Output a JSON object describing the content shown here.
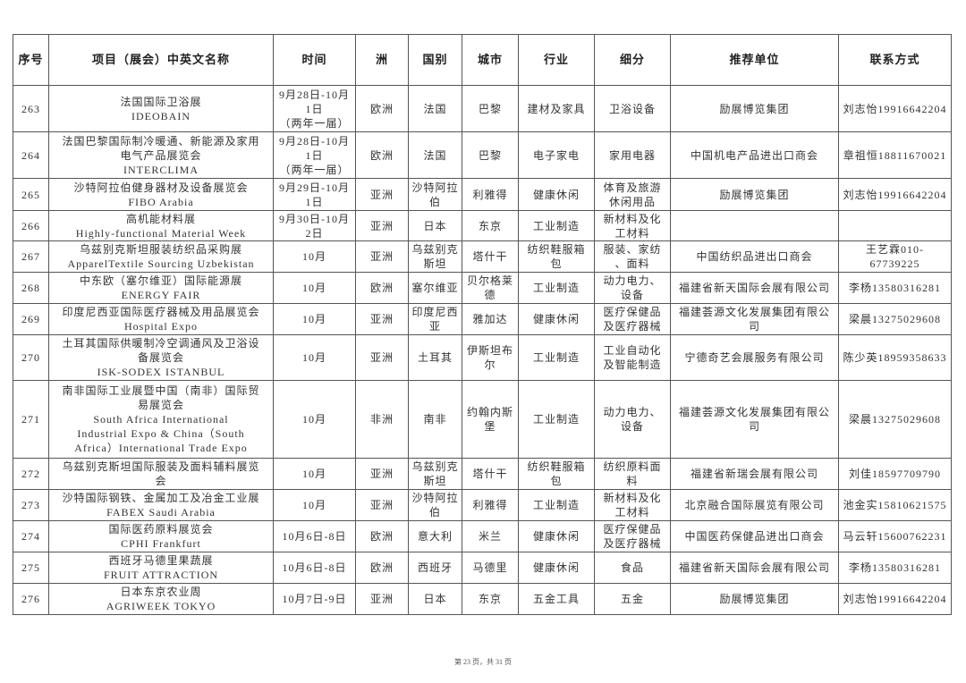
{
  "table": {
    "headers": [
      "序号",
      "项目（展会）中英文名称",
      "时间",
      "洲",
      "国别",
      "城市",
      "行业",
      "细分",
      "推荐单位",
      "联系方式"
    ],
    "rows": [
      [
        "263",
        "法国国际卫浴展\nIDEOBAIN",
        "9月28日-10月\n1日\n（两年一届）",
        "欧洲",
        "法国",
        "巴黎",
        "建材及家具",
        "卫浴设备",
        "励展博览集团",
        "刘志怡19916642204"
      ],
      [
        "264",
        "法国巴黎国际制冷暖通、新能源及家用\n电气产品展览会\nINTERCLIMA",
        "9月28日-10月\n1日\n（两年一届）",
        "欧洲",
        "法国",
        "巴黎",
        "电子家电",
        "家用电器",
        "中国机电产品进出口商会",
        "章祖恒18811670021"
      ],
      [
        "265",
        "沙特阿拉伯健身器材及设备展览会\nFIBO Arabia",
        "9月29日-10月\n1日",
        "亚洲",
        "沙特阿拉\n伯",
        "利雅得",
        "健康休闲",
        "体育及旅游\n休闲用品",
        "励展博览集团",
        "刘志怡19916642204"
      ],
      [
        "266",
        "高机能材料展\nHighly-functional Material Week",
        "9月30日-10月\n2日",
        "亚洲",
        "日本",
        "东京",
        "工业制造",
        "新材料及化\n工材料",
        "",
        ""
      ],
      [
        "267",
        "乌兹别克斯坦服装纺织品采购展\nApparelTextile Sourcing Uzbekistan",
        "10月",
        "亚洲",
        "乌兹别克\n斯坦",
        "塔什干",
        "纺织鞋服箱\n包",
        "服装、家纺\n、面料",
        "中国纺织品进出口商会",
        "王艺霖010-\n67739225"
      ],
      [
        "268",
        "中东欧（塞尔维亚）国际能源展\nENERGY FAIR",
        "10月",
        "欧洲",
        "塞尔维亚",
        "贝尔格莱\n德",
        "工业制造",
        "动力电力、\n设备",
        "福建省新天国际会展有限公司",
        "李杨13580316281"
      ],
      [
        "269",
        "印度尼西亚国际医疗器械及用品展览会\nHospital Expo",
        "10月",
        "亚洲",
        "印度尼西\n亚",
        "雅加达",
        "健康休闲",
        "医疗保健品\n及医疗器械",
        "福建荟源文化发展集团有限公\n司",
        "梁晨13275029608"
      ],
      [
        "270",
        "土耳其国际供暖制冷空调通风及卫浴设\n备展览会\nISK-SODEX ISTANBUL",
        "10月",
        "亚洲",
        "土耳其",
        "伊斯坦布\n尔",
        "工业制造",
        "工业自动化\n及智能制造",
        "宁德奇艺会展服务有限公司",
        "陈少英18959358633"
      ],
      [
        "271",
        "南非国际工业展暨中国（南非）国际贸\n易展览会\nSouth Africa International\nIndustrial Expo & China（South\nAfrica）International Trade Expo",
        "10月",
        "非洲",
        "南非",
        "约翰内斯\n堡",
        "工业制造",
        "动力电力、\n设备",
        "福建荟源文化发展集团有限公\n司",
        "梁晨13275029608"
      ],
      [
        "272",
        "乌兹别克斯坦国际服装及面料辅料展览\n会",
        "10月",
        "亚洲",
        "乌兹别克\n斯坦",
        "塔什干",
        "纺织鞋服箱\n包",
        "纺织原料面\n料",
        "福建省新瑞会展有限公司",
        "刘佳18597709790"
      ],
      [
        "273",
        "沙特国际钢铁、金属加工及冶金工业展\nFABEX Saudi Arabia",
        "10月",
        "亚洲",
        "沙特阿拉\n伯",
        "利雅得",
        "工业制造",
        "新材料及化\n工材料",
        "北京融合国际展览有限公司",
        "池金实15810621575"
      ],
      [
        "274",
        "国际医药原料展览会\nCPHI Frankfurt",
        "10月6日-8日",
        "欧洲",
        "意大利",
        "米兰",
        "健康休闲",
        "医疗保健品\n及医疗器械",
        "中国医药保健品进出口商会",
        "马云轩15600762231"
      ],
      [
        "275",
        "西班牙马德里果蔬展\nFRUIT ATTRACTION",
        "10月6日-8日",
        "欧洲",
        "西班牙",
        "马德里",
        "健康休闲",
        "食品",
        "福建省新天国际会展有限公司",
        "李杨13580316281"
      ],
      [
        "276",
        "日本东京农业周\nAGRIWEEK TOKYO",
        "10月7日-9日",
        "亚洲",
        "日本",
        "东京",
        "五金工具",
        "五金",
        "励展博览集团",
        "刘志怡19916642204"
      ]
    ]
  },
  "footer": {
    "page_label": "第 23 页，共 31 页"
  }
}
